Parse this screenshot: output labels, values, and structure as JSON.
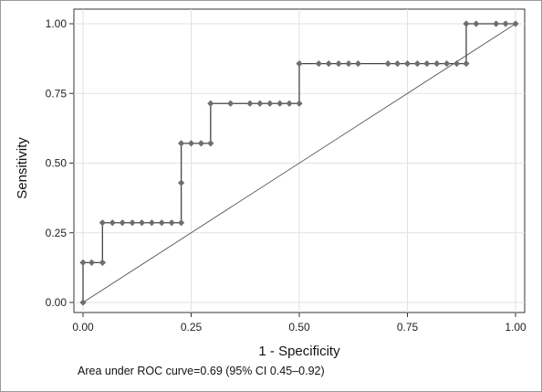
{
  "chart_data": {
    "type": "line",
    "title": "",
    "xlabel": "1 - Specificity",
    "ylabel": "Sensitivity",
    "xlim": [
      0,
      1
    ],
    "ylim": [
      0,
      1
    ],
    "x_ticks": [
      "0.00",
      "0.25",
      "0.50",
      "0.75",
      "1.00"
    ],
    "y_ticks": [
      "0.00",
      "0.25",
      "0.50",
      "0.75",
      "1.00"
    ],
    "grid": true,
    "legend": "none",
    "series": [
      {
        "x": [
          0,
          0,
          0.02,
          0.045,
          0.045,
          0.045,
          0.068,
          0.091,
          0.114,
          0.136,
          0.159,
          0.182,
          0.205,
          0.227,
          0.227,
          0.227,
          0.25,
          0.273,
          0.295,
          0.295,
          0.341,
          0.386,
          0.409,
          0.432,
          0.455,
          0.477,
          0.5,
          0.5,
          0.545,
          0.568,
          0.591,
          0.614,
          0.636,
          0.705,
          0.727,
          0.75,
          0.773,
          0.795,
          0.818,
          0.841,
          0.864,
          0.886,
          0.886,
          0.909,
          0.955,
          0.977,
          1.0
        ],
        "y": [
          0,
          0.143,
          0.143,
          0.143,
          0.143,
          0.286,
          0.286,
          0.286,
          0.286,
          0.286,
          0.286,
          0.286,
          0.286,
          0.286,
          0.429,
          0.571,
          0.571,
          0.571,
          0.571,
          0.714,
          0.714,
          0.714,
          0.714,
          0.714,
          0.714,
          0.714,
          0.714,
          0.857,
          0.857,
          0.857,
          0.857,
          0.857,
          0.857,
          0.857,
          0.857,
          0.857,
          0.857,
          0.857,
          0.857,
          0.857,
          0.857,
          0.857,
          1.0,
          1.0,
          1.0,
          1.0,
          1.0
        ],
        "marker_color": "#6e6e6e",
        "line_color": "#444444"
      },
      {
        "x": [
          0,
          1
        ],
        "y": [
          0,
          1
        ],
        "line_color": "#555555"
      }
    ],
    "annotation": "Area under ROC curve=0.69 (95% CI 0.45–0.92)"
  }
}
